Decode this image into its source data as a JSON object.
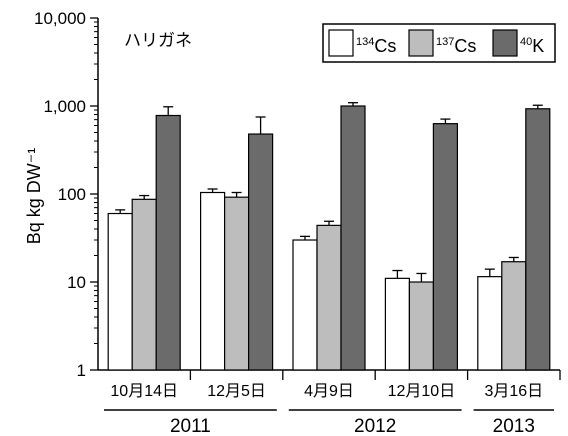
{
  "chart_data": {
    "type": "bar",
    "title": "ハリガネ",
    "ylabel": "Bq kg DW⁻¹",
    "xlabel": "",
    "yscale": "log",
    "ylim": [
      1,
      10000
    ],
    "yticks": [
      {
        "value": 1,
        "label": "1"
      },
      {
        "value": 10,
        "label": "10"
      },
      {
        "value": 100,
        "label": "100"
      },
      {
        "value": 1000,
        "label": "1,000"
      },
      {
        "value": 10000,
        "label": "10,000"
      }
    ],
    "categories": [
      "10月14日",
      "12月5日",
      "4月9日",
      "12月10日",
      "3月16日"
    ],
    "years": [
      {
        "label": "2011",
        "categories": [
          0,
          1
        ]
      },
      {
        "label": "2012",
        "categories": [
          2,
          3
        ]
      },
      {
        "label": "2013",
        "categories": [
          4
        ]
      }
    ],
    "legend_position": "top-right",
    "series": [
      {
        "name": "134Cs",
        "sup": "134",
        "base": "Cs",
        "color": "#ffffff",
        "values": [
          60,
          104,
          30,
          11,
          11.5
        ],
        "errors": [
          6,
          10,
          3,
          2.5,
          2.5
        ]
      },
      {
        "name": "137Cs",
        "sup": "137",
        "base": "Cs",
        "color": "#bdbdbd",
        "values": [
          87,
          92,
          44,
          10,
          17
        ],
        "errors": [
          9,
          12,
          5,
          2.5,
          2
        ]
      },
      {
        "name": "40K",
        "sup": "40",
        "base": "K",
        "color": "#6b6b6b",
        "values": [
          780,
          480,
          1000,
          630,
          930
        ],
        "errors": [
          200,
          270,
          90,
          80,
          90
        ]
      }
    ]
  }
}
